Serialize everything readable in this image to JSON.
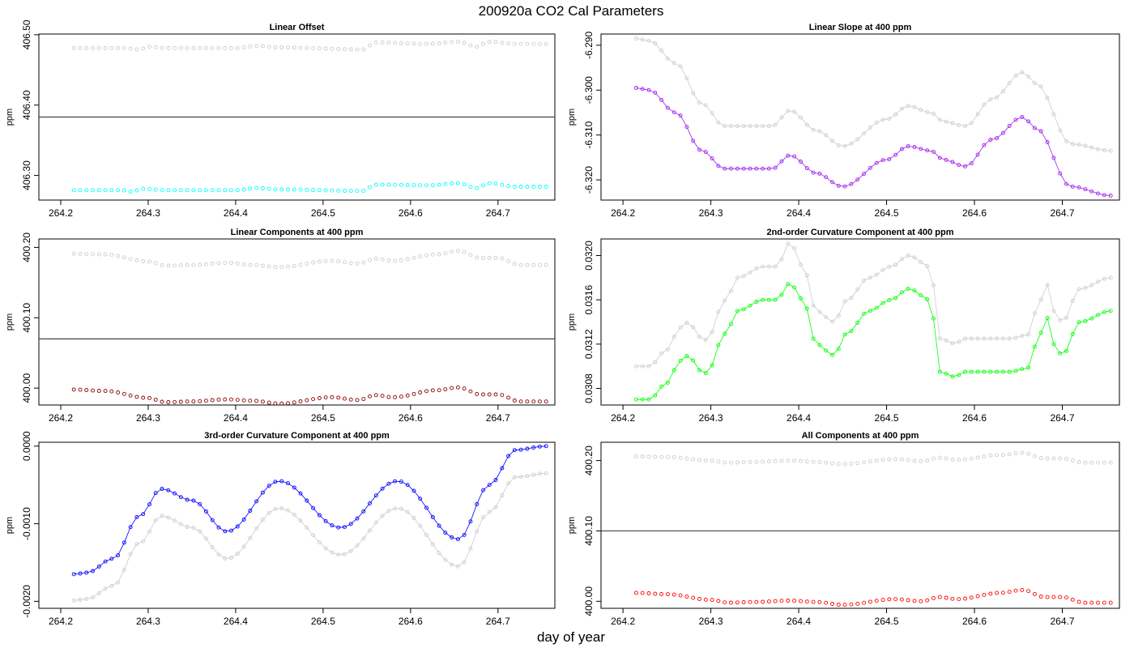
{
  "figure": {
    "title": "200920a   CO2 Cal Parameters",
    "xlabel": "day of year"
  },
  "colors": {
    "reference": "#cccccc",
    "axis": "#000000",
    "hline": "#444444"
  },
  "chart_data": [
    {
      "id": "p1",
      "type": "scatter",
      "title": "Linear Offset",
      "ylabel": "ppm",
      "xlim": [
        264.175,
        264.765
      ],
      "ylim": [
        406.265,
        406.501
      ],
      "xticks": [
        264.2,
        264.3,
        264.4,
        264.5,
        264.6,
        264.7
      ],
      "yticks": [
        406.3,
        406.4,
        406.5
      ],
      "ytick_labels": [
        "406.30",
        "406.40",
        "406.50"
      ],
      "hline": 406.383,
      "connect_lines": false,
      "series": [
        {
          "role": "reference",
          "color": "#cccccc",
          "kx": [
            264.215,
            264.27,
            264.29,
            264.3,
            264.32,
            264.4,
            264.425,
            264.45,
            264.545,
            264.56,
            264.62,
            264.655,
            264.675,
            264.69,
            264.72,
            264.755
          ],
          "ky": [
            406.481,
            406.481,
            406.479,
            406.483,
            406.481,
            406.481,
            406.484,
            406.482,
            406.479,
            406.489,
            406.487,
            406.49,
            406.483,
            406.49,
            406.487,
            406.487
          ]
        },
        {
          "role": "current",
          "color": "#00ffff",
          "kx": [
            264.215,
            264.27,
            264.28,
            264.295,
            264.32,
            264.4,
            264.425,
            264.45,
            264.545,
            264.56,
            264.62,
            264.655,
            264.675,
            264.69,
            264.72,
            264.755
          ],
          "ky": [
            406.279,
            406.279,
            406.277,
            406.281,
            406.279,
            406.279,
            406.282,
            406.28,
            406.278,
            406.287,
            406.286,
            406.289,
            406.282,
            406.289,
            406.284,
            406.284
          ]
        }
      ]
    },
    {
      "id": "p2",
      "type": "scatter",
      "title": "Linear Slope at 400 ppm",
      "ylabel": "ppm",
      "xlim": [
        264.175,
        264.765
      ],
      "ylim": [
        -6.3245,
        -6.2875
      ],
      "xticks": [
        264.2,
        264.3,
        264.4,
        264.5,
        264.6,
        264.7
      ],
      "yticks": [
        -6.32,
        -6.31,
        -6.3,
        -6.29
      ],
      "ytick_labels": [
        "-6.320",
        "-6.310",
        "-6.300",
        "-6.290"
      ],
      "hline": null,
      "connect_lines": true,
      "series": [
        {
          "role": "reference",
          "color": "#cccccc",
          "kx": [
            264.215,
            264.23,
            264.26,
            264.29,
            264.315,
            264.33,
            264.37,
            264.39,
            264.42,
            264.45,
            264.5,
            264.525,
            264.55,
            264.565,
            264.59,
            264.62,
            264.655,
            264.67,
            264.71,
            264.755
          ],
          "ky": [
            -6.2885,
            -6.289,
            -6.294,
            -6.303,
            -6.308,
            -6.308,
            -6.308,
            -6.3045,
            -6.309,
            -6.3125,
            -6.3065,
            -6.3035,
            -6.305,
            -6.307,
            -6.308,
            -6.302,
            -6.296,
            -6.2985,
            -6.312,
            -6.3135
          ]
        },
        {
          "role": "current",
          "color": "#a020f0",
          "kx": [
            264.215,
            264.23,
            264.26,
            264.29,
            264.315,
            264.33,
            264.37,
            264.39,
            264.42,
            264.45,
            264.5,
            264.525,
            264.55,
            264.565,
            264.59,
            264.62,
            264.655,
            264.67,
            264.71,
            264.755
          ],
          "ky": [
            -6.2995,
            -6.3,
            -6.305,
            -6.3135,
            -6.3175,
            -6.3175,
            -6.3175,
            -6.3145,
            -6.3185,
            -6.3215,
            -6.3155,
            -6.3125,
            -6.3135,
            -6.3155,
            -6.317,
            -6.311,
            -6.306,
            -6.3085,
            -6.3215,
            -6.3235
          ]
        }
      ]
    },
    {
      "id": "p3",
      "type": "scatter",
      "title": "Linear Components at 400 ppm",
      "ylabel": "ppm",
      "xlim": [
        264.175,
        264.765
      ],
      "ylim": [
        399.976,
        400.212
      ],
      "xticks": [
        264.2,
        264.3,
        264.4,
        264.5,
        264.6,
        264.7
      ],
      "yticks": [
        400.0,
        400.1,
        400.2
      ],
      "ytick_labels": [
        "400.00",
        "400.10",
        "400.20"
      ],
      "hline": 400.07,
      "connect_lines": false,
      "series": [
        {
          "role": "reference",
          "color": "#cccccc",
          "kx": [
            264.215,
            264.25,
            264.3,
            264.32,
            264.35,
            264.39,
            264.42,
            264.45,
            264.51,
            264.54,
            264.56,
            264.58,
            264.63,
            264.655,
            264.68,
            264.7,
            264.725,
            264.755
          ],
          "ky": [
            400.191,
            400.19,
            400.18,
            400.174,
            400.175,
            400.178,
            400.175,
            400.172,
            400.181,
            400.177,
            400.184,
            400.181,
            400.19,
            400.195,
            400.185,
            400.185,
            400.175,
            400.175
          ]
        },
        {
          "role": "current",
          "color": "#8b0000",
          "kx": [
            264.215,
            264.25,
            264.3,
            264.32,
            264.35,
            264.39,
            264.42,
            264.45,
            264.51,
            264.54,
            264.56,
            264.58,
            264.63,
            264.655,
            264.68,
            264.7,
            264.725,
            264.755
          ],
          "ky": [
            399.998,
            399.996,
            399.986,
            399.98,
            399.981,
            399.984,
            399.982,
            399.978,
            399.987,
            399.983,
            399.99,
            399.987,
            399.997,
            400.001,
            399.991,
            399.991,
            399.981,
            399.981
          ]
        }
      ]
    },
    {
      "id": "p4",
      "type": "scatter",
      "title": "2nd-order Curvature Component at 400 ppm",
      "ylabel": "ppm",
      "xlim": [
        264.175,
        264.765
      ],
      "ylim": [
        0.03065,
        0.03215
      ],
      "xticks": [
        264.2,
        264.3,
        264.4,
        264.5,
        264.6,
        264.7
      ],
      "yticks": [
        0.0308,
        0.0312,
        0.0316,
        0.032
      ],
      "ytick_labels": [
        "0.0308",
        "0.0312",
        "0.0316",
        "0.0320"
      ],
      "hline": null,
      "connect_lines": true,
      "series": [
        {
          "role": "reference",
          "color": "#cccccc",
          "kx": [
            264.215,
            264.23,
            264.25,
            264.265,
            264.275,
            264.285,
            264.29,
            264.3,
            264.31,
            264.32,
            264.33,
            264.36,
            264.375,
            264.39,
            264.405,
            264.42,
            264.44,
            264.455,
            264.48,
            264.505,
            264.525,
            264.55,
            264.56,
            264.58,
            264.585,
            264.6,
            264.64,
            264.66,
            264.675,
            264.685,
            264.69,
            264.7,
            264.72,
            264.755
          ],
          "ky": [
            0.031,
            0.031,
            0.03115,
            0.03135,
            0.0314,
            0.0313,
            0.0312,
            0.0313,
            0.0315,
            0.03165,
            0.0318,
            0.0319,
            0.0319,
            0.03212,
            0.0319,
            0.0315,
            0.0314,
            0.0316,
            0.0318,
            0.0319,
            0.032,
            0.0319,
            0.03125,
            0.0312,
            0.03125,
            0.03125,
            0.03125,
            0.03128,
            0.0316,
            0.03175,
            0.0315,
            0.0314,
            0.0317,
            0.0318
          ]
        },
        {
          "role": "current",
          "color": "#00ff00",
          "kx": [
            264.215,
            264.23,
            264.25,
            264.265,
            264.275,
            264.285,
            264.29,
            264.3,
            264.31,
            264.32,
            264.33,
            264.36,
            264.375,
            264.39,
            264.405,
            264.42,
            264.44,
            264.455,
            264.48,
            264.505,
            264.525,
            264.55,
            264.56,
            264.58,
            264.585,
            264.6,
            264.64,
            264.66,
            264.675,
            264.685,
            264.69,
            264.7,
            264.72,
            264.755
          ],
          "ky": [
            0.0307,
            0.0307,
            0.03085,
            0.03105,
            0.0311,
            0.031,
            0.0309,
            0.031,
            0.0312,
            0.03135,
            0.0315,
            0.0316,
            0.0316,
            0.03175,
            0.0316,
            0.0312,
            0.0311,
            0.0313,
            0.0315,
            0.0316,
            0.0317,
            0.0316,
            0.03095,
            0.0309,
            0.03095,
            0.03095,
            0.03095,
            0.03098,
            0.0313,
            0.03145,
            0.0312,
            0.0311,
            0.0314,
            0.0315
          ]
        }
      ]
    },
    {
      "id": "p5",
      "type": "scatter",
      "title": "3rd-order Curvature Component at 400 ppm",
      "ylabel": "ppm",
      "xlim": [
        264.175,
        264.765
      ],
      "ylim": [
        -0.00209,
        5e-05
      ],
      "xticks": [
        264.2,
        264.3,
        264.4,
        264.5,
        264.6,
        264.7
      ],
      "yticks": [
        -0.002,
        -0.001,
        0.0
      ],
      "ytick_labels": [
        "-0.0020",
        "-0.0010",
        "0.0000"
      ],
      "hline": null,
      "connect_lines": true,
      "series": [
        {
          "role": "reference",
          "color": "#cccccc",
          "kx": [
            264.215,
            264.23,
            264.26,
            264.29,
            264.315,
            264.35,
            264.39,
            264.45,
            264.52,
            264.585,
            264.655,
            264.69,
            264.72,
            264.755
          ],
          "ky": [
            -0.00199,
            -0.00197,
            -0.0018,
            -0.00125,
            -0.0009,
            -0.00105,
            -0.00145,
            -0.0008,
            -0.0014,
            -0.0008,
            -0.00155,
            -0.00085,
            -0.0004,
            -0.00035
          ]
        },
        {
          "role": "current",
          "color": "#0000ff",
          "kx": [
            264.215,
            264.23,
            264.26,
            264.29,
            264.315,
            264.35,
            264.39,
            264.45,
            264.52,
            264.585,
            264.655,
            264.69,
            264.72,
            264.755
          ],
          "ky": [
            -0.00165,
            -0.00163,
            -0.00145,
            -0.0009,
            -0.00055,
            -0.0007,
            -0.0011,
            -0.00045,
            -0.00105,
            -0.00045,
            -0.0012,
            -0.0005,
            -5e-05,
            0.0
          ]
        }
      ]
    },
    {
      "id": "p6",
      "type": "scatter",
      "title": "All Components at 400 ppm",
      "ylabel": "ppm",
      "xlim": [
        264.175,
        264.765
      ],
      "ylim": [
        399.99,
        400.226
      ],
      "xticks": [
        264.2,
        264.3,
        264.4,
        264.5,
        264.6,
        264.7
      ],
      "yticks": [
        400.0,
        400.1,
        400.2
      ],
      "ytick_labels": [
        "400.00",
        "400.10",
        "400.20"
      ],
      "hline": 400.1,
      "connect_lines": false,
      "series": [
        {
          "role": "reference",
          "color": "#cccccc",
          "kx": [
            264.215,
            264.25,
            264.3,
            264.32,
            264.35,
            264.39,
            264.42,
            264.45,
            264.51,
            264.54,
            264.56,
            264.58,
            264.63,
            264.655,
            264.68,
            264.7,
            264.725,
            264.755
          ],
          "ky": [
            400.206,
            400.205,
            400.2,
            400.197,
            400.198,
            400.2,
            400.198,
            400.195,
            400.202,
            400.199,
            400.204,
            400.201,
            400.208,
            400.211,
            400.203,
            400.203,
            400.197,
            400.197
          ]
        },
        {
          "role": "current",
          "color": "#ff0000",
          "kx": [
            264.215,
            264.25,
            264.3,
            264.32,
            264.35,
            264.39,
            264.42,
            264.45,
            264.51,
            264.54,
            264.56,
            264.58,
            264.63,
            264.655,
            264.68,
            264.7,
            264.725,
            264.755
          ],
          "ky": [
            400.012,
            400.01,
            400.002,
            399.998,
            399.999,
            400.001,
            399.999,
            399.995,
            400.003,
            400.0,
            400.006,
            400.003,
            400.012,
            400.016,
            400.006,
            400.006,
            399.998,
            399.998
          ]
        }
      ]
    }
  ]
}
